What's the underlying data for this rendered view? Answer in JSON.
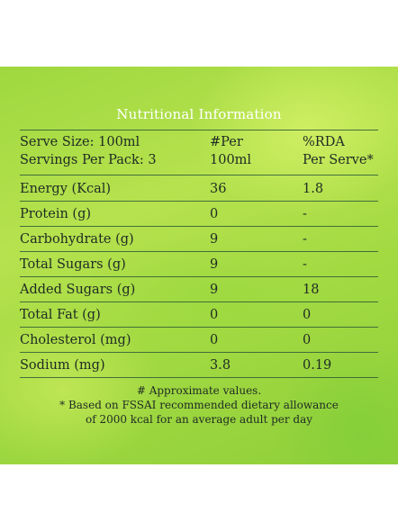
{
  "title": "Nutritional Information",
  "header": {
    "left": [
      "Serve Size: 100ml",
      "Servings Per Pack: 3"
    ],
    "mid": [
      "#Per",
      "100ml"
    ],
    "right": [
      "%RDA",
      "Per Serve*"
    ]
  },
  "rows": [
    {
      "name": "Energy (Kcal)",
      "per100": "36",
      "rda": "1.8"
    },
    {
      "name": "Protein (g)",
      "per100": "0",
      "rda": "-"
    },
    {
      "name": "Carbohydrate (g)",
      "per100": "9",
      "rda": "-"
    },
    {
      "name": "Total Sugars (g)",
      "per100": "9",
      "rda": "-"
    },
    {
      "name": "Added Sugars (g)",
      "per100": "9",
      "rda": "18"
    },
    {
      "name": "Total Fat (g)",
      "per100": "0",
      "rda": "0"
    },
    {
      "name": "Cholesterol (mg)",
      "per100": "0",
      "rda": "0"
    },
    {
      "name": "Sodium (mg)",
      "per100": "3.8",
      "rda": "0.19"
    }
  ],
  "footnotes": [
    "# Approximate values.",
    "* Based on FSSAI recommended dietary allowance",
    "of 2000 kcal for an average adult per day"
  ]
}
